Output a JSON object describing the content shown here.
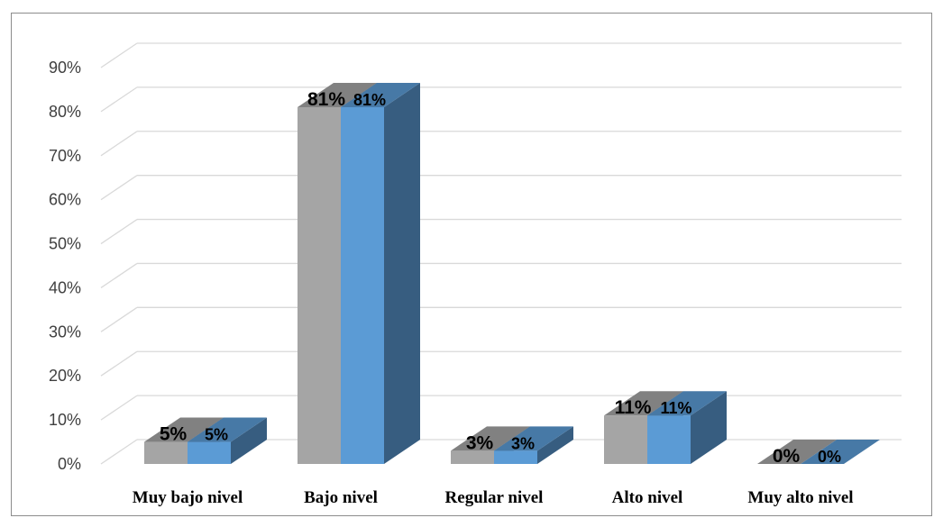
{
  "chart_data": {
    "type": "bar",
    "title": "",
    "xlabel": "",
    "ylabel": "",
    "categories": [
      "Muy bajo nivel",
      "Bajo nivel",
      "Regular nivel",
      "Alto nivel",
      "Muy alto nivel"
    ],
    "series": [
      {
        "values": [
          5,
          81,
          3,
          11,
          0
        ],
        "labels": [
          "5%",
          "81%",
          "3%",
          "11%",
          "0%"
        ],
        "color": "#a5a5a5"
      },
      {
        "values": [
          5,
          81,
          3,
          11,
          0
        ],
        "labels": [
          "5%",
          "81%",
          "3%",
          "11%",
          "0%"
        ],
        "color": "#5b9bd5"
      }
    ],
    "ylim": [
      0,
      90
    ],
    "yticks": [
      "0%",
      "10%",
      "20%",
      "30%",
      "40%",
      "50%",
      "60%",
      "70%",
      "80%",
      "90%"
    ],
    "grid": true,
    "legend": "none",
    "style": "3d-clustered-column"
  }
}
